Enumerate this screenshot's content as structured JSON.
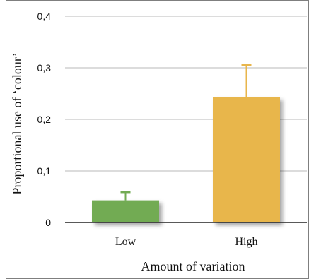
{
  "chart_data": {
    "type": "bar",
    "categories": [
      "Low",
      "High"
    ],
    "values": [
      0.043,
      0.243
    ],
    "error_upper": [
      0.059,
      0.305
    ],
    "colors": [
      "#72ab52",
      "#e8b64c"
    ],
    "xlabel": "Amount of variation",
    "ylabel": "Proportional use of ‘colour’",
    "ylim": [
      0,
      0.4
    ],
    "yticks": [
      0,
      0.1,
      0.2,
      0.3,
      0.4
    ],
    "ytick_labels": [
      "0",
      "0,1",
      "0,2",
      "0,3",
      "0,4"
    ],
    "grid": true,
    "legend": "none"
  }
}
